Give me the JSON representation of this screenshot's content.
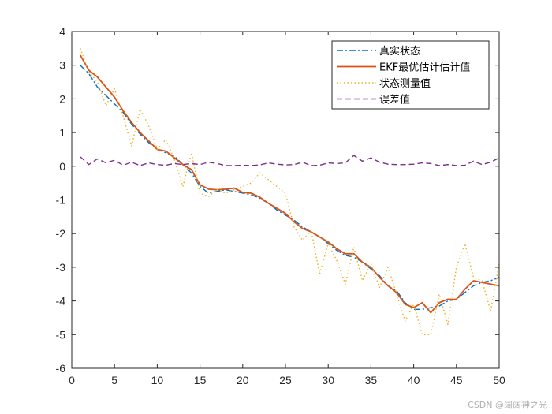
{
  "chart_data": {
    "type": "line",
    "title": "",
    "xlabel": "",
    "ylabel": "",
    "xlim": [
      0,
      50
    ],
    "ylim": [
      -6,
      4
    ],
    "xticks": [
      "0",
      "5",
      "10",
      "15",
      "20",
      "25",
      "30",
      "35",
      "40",
      "45",
      "50"
    ],
    "yticks": [
      "-6",
      "-5",
      "-4",
      "-3",
      "-2",
      "-1",
      "0",
      "1",
      "2",
      "3",
      "4"
    ],
    "grid": false,
    "legend_position": "top-right",
    "x": [
      1,
      2,
      3,
      4,
      5,
      6,
      7,
      8,
      9,
      10,
      11,
      12,
      13,
      14,
      15,
      16,
      17,
      18,
      19,
      20,
      21,
      22,
      23,
      24,
      25,
      26,
      27,
      28,
      29,
      30,
      31,
      32,
      33,
      34,
      35,
      36,
      37,
      38,
      39,
      40,
      41,
      42,
      43,
      44,
      45,
      46,
      47,
      48,
      49,
      50
    ],
    "series": [
      {
        "name": "真实状态",
        "color": "#0072BD",
        "dash": "dashdot",
        "values": [
          3.0,
          2.75,
          2.35,
          2.1,
          1.85,
          1.6,
          1.25,
          0.95,
          0.7,
          0.5,
          0.4,
          0.3,
          0.05,
          -0.2,
          -0.6,
          -0.8,
          -0.75,
          -0.7,
          -0.75,
          -0.8,
          -0.85,
          -0.95,
          -1.1,
          -1.3,
          -1.45,
          -1.6,
          -1.8,
          -1.95,
          -2.1,
          -2.3,
          -2.5,
          -2.65,
          -2.7,
          -2.85,
          -3.05,
          -3.25,
          -3.55,
          -3.7,
          -4.05,
          -4.25,
          -4.25,
          -4.2,
          -4.15,
          -4.0,
          -3.95,
          -3.75,
          -3.55,
          -3.45,
          -3.4,
          -3.3
        ]
      },
      {
        "name": "EKF最优估计估计值",
        "color": "#D95319",
        "dash": "solid",
        "values": [
          3.3,
          2.85,
          2.65,
          2.35,
          2.05,
          1.65,
          1.3,
          1.0,
          0.75,
          0.5,
          0.45,
          0.25,
          0.05,
          -0.1,
          -0.55,
          -0.68,
          -0.7,
          -0.68,
          -0.65,
          -0.78,
          -0.8,
          -0.92,
          -1.1,
          -1.25,
          -1.4,
          -1.65,
          -1.85,
          -1.95,
          -2.1,
          -2.25,
          -2.45,
          -2.6,
          -2.6,
          -2.85,
          -3.0,
          -3.3,
          -3.55,
          -3.75,
          -4.1,
          -4.2,
          -4.05,
          -4.35,
          -4.05,
          -3.95,
          -3.95,
          -3.65,
          -3.4,
          -3.45,
          -3.5,
          -3.55
        ]
      },
      {
        "name": "状态测量值",
        "color": "#EDB120",
        "dash": "dotted",
        "values": [
          3.5,
          2.8,
          2.5,
          1.8,
          2.3,
          1.5,
          0.6,
          1.7,
          1.2,
          0.5,
          0.8,
          0.2,
          -0.6,
          0.4,
          -0.8,
          -0.9,
          -0.7,
          -0.8,
          -0.7,
          -0.6,
          -0.5,
          -0.2,
          -0.4,
          -0.6,
          -0.8,
          -1.8,
          -2.2,
          -1.9,
          -3.2,
          -2.3,
          -2.8,
          -3.5,
          -2.4,
          -3.4,
          -2.9,
          -3.6,
          -3.0,
          -3.8,
          -4.6,
          -4.1,
          -5.0,
          -5.0,
          -3.8,
          -4.7,
          -3.0,
          -2.3,
          -3.3,
          -3.4,
          -4.3,
          -2.9
        ]
      },
      {
        "name": "误差值",
        "color": "#7E2F8E",
        "dash": "dashed",
        "values": [
          0.28,
          0.05,
          0.22,
          0.1,
          0.18,
          0.03,
          0.12,
          0.02,
          0.1,
          0.05,
          0.03,
          0.08,
          0.05,
          0.08,
          0.05,
          0.12,
          0.08,
          0.02,
          0.02,
          0.03,
          0.02,
          0.04,
          0.1,
          0.06,
          0.04,
          0.05,
          0.12,
          0.02,
          0.03,
          0.1,
          0.08,
          0.1,
          0.32,
          0.15,
          0.25,
          0.12,
          0.06,
          0.05,
          0.05,
          0.06,
          0.1,
          0.08,
          0.02,
          0.05,
          0.02,
          0.03,
          0.15,
          0.05,
          0.12,
          0.25
        ]
      }
    ]
  },
  "watermark": "CSDN @阔阔神之光"
}
